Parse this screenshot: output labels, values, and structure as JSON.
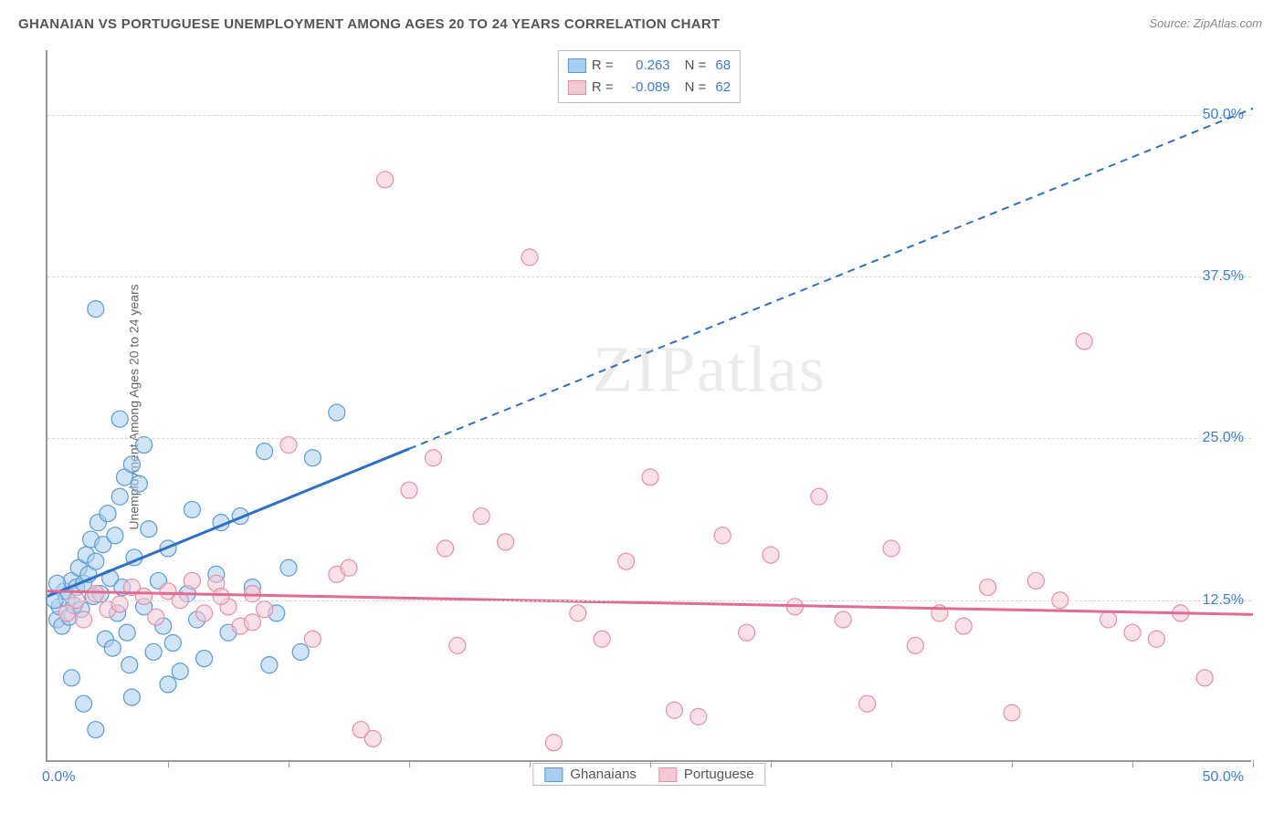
{
  "title": "GHANAIAN VS PORTUGUESE UNEMPLOYMENT AMONG AGES 20 TO 24 YEARS CORRELATION CHART",
  "source": "Source: ZipAtlas.com",
  "y_axis_title": "Unemployment Among Ages 20 to 24 years",
  "watermark": {
    "zip": "ZIP",
    "atlas": "atlas"
  },
  "chart": {
    "type": "scatter",
    "xlim": [
      0,
      50
    ],
    "ylim": [
      0,
      55
    ],
    "x_min_label": "0.0%",
    "x_max_label": "50.0%",
    "yticks": [
      12.5,
      25.0,
      37.5,
      50.0
    ],
    "ytick_labels": [
      "12.5%",
      "25.0%",
      "37.5%",
      "50.0%"
    ],
    "xticks": [
      5,
      10,
      15,
      20,
      25,
      30,
      35,
      40,
      45,
      50
    ],
    "background_color": "#ffffff",
    "grid_color": "#d8d8d8",
    "axis_color": "#999999",
    "marker_radius": 9,
    "marker_stroke_width": 1.2,
    "marker_opacity": 0.55,
    "colors": {
      "series1_fill": "#a9cdf0",
      "series1_stroke": "#5a9bd5",
      "series1_line": "#2e6fc9",
      "series2_fill": "#f6c8d4",
      "series2_stroke": "#e58fa6",
      "series2_line": "#e36b91",
      "tick_label": "#3b7dd8"
    },
    "stats": {
      "series1": {
        "R": "0.263",
        "N": "68"
      },
      "series2": {
        "R": "-0.089",
        "N": "62"
      }
    },
    "trend_lines": {
      "series1": {
        "x1": 0,
        "y1": 12.8,
        "solid_x2": 15,
        "solid_y2": 24.2,
        "dash_x2": 50,
        "dash_y2": 50.5
      },
      "series2": {
        "x1": 0,
        "y1": 13.2,
        "x2": 50,
        "y2": 11.4
      }
    },
    "series": [
      {
        "name": "Ghanaians",
        "points": [
          [
            0.4,
            11.0
          ],
          [
            0.5,
            12.0
          ],
          [
            0.6,
            10.5
          ],
          [
            0.7,
            13.2
          ],
          [
            0.8,
            12.6
          ],
          [
            0.9,
            11.2
          ],
          [
            1.0,
            14.0
          ],
          [
            1.1,
            12.1
          ],
          [
            1.2,
            13.5
          ],
          [
            1.3,
            15.0
          ],
          [
            1.4,
            11.8
          ],
          [
            1.5,
            13.8
          ],
          [
            1.6,
            16.0
          ],
          [
            1.7,
            14.5
          ],
          [
            1.8,
            17.2
          ],
          [
            1.9,
            12.8
          ],
          [
            2.0,
            15.5
          ],
          [
            2.1,
            18.5
          ],
          [
            2.2,
            13.0
          ],
          [
            2.3,
            16.8
          ],
          [
            2.4,
            9.5
          ],
          [
            2.5,
            19.2
          ],
          [
            2.6,
            14.2
          ],
          [
            2.7,
            8.8
          ],
          [
            2.8,
            17.5
          ],
          [
            2.9,
            11.5
          ],
          [
            3.0,
            20.5
          ],
          [
            3.1,
            13.5
          ],
          [
            3.2,
            22.0
          ],
          [
            3.3,
            10.0
          ],
          [
            3.4,
            7.5
          ],
          [
            3.5,
            23.0
          ],
          [
            3.6,
            15.8
          ],
          [
            3.8,
            21.5
          ],
          [
            4.0,
            12.0
          ],
          [
            4.2,
            18.0
          ],
          [
            4.4,
            8.5
          ],
          [
            4.6,
            14.0
          ],
          [
            4.8,
            10.5
          ],
          [
            5.0,
            16.5
          ],
          [
            5.2,
            9.2
          ],
          [
            5.5,
            7.0
          ],
          [
            5.8,
            13.0
          ],
          [
            6.0,
            19.5
          ],
          [
            6.2,
            11.0
          ],
          [
            6.5,
            8.0
          ],
          [
            7.0,
            14.5
          ],
          [
            7.2,
            18.5
          ],
          [
            7.5,
            10.0
          ],
          [
            8.0,
            19.0
          ],
          [
            8.5,
            13.5
          ],
          [
            9.0,
            24.0
          ],
          [
            9.2,
            7.5
          ],
          [
            9.5,
            11.5
          ],
          [
            10.0,
            15.0
          ],
          [
            10.5,
            8.5
          ],
          [
            11.0,
            23.5
          ],
          [
            12.0,
            27.0
          ],
          [
            2.0,
            35.0
          ],
          [
            3.0,
            26.5
          ],
          [
            4.0,
            24.5
          ],
          [
            1.5,
            4.5
          ],
          [
            2.0,
            2.5
          ],
          [
            1.0,
            6.5
          ],
          [
            3.5,
            5.0
          ],
          [
            5.0,
            6.0
          ],
          [
            0.3,
            12.5
          ],
          [
            0.4,
            13.8
          ]
        ]
      },
      {
        "name": "Portuguese",
        "points": [
          [
            0.8,
            11.5
          ],
          [
            1.2,
            12.5
          ],
          [
            1.5,
            11.0
          ],
          [
            2.0,
            13.0
          ],
          [
            2.5,
            11.8
          ],
          [
            3.0,
            12.2
          ],
          [
            3.5,
            13.5
          ],
          [
            4.0,
            12.8
          ],
          [
            4.5,
            11.2
          ],
          [
            5.0,
            13.2
          ],
          [
            5.5,
            12.5
          ],
          [
            6.0,
            14.0
          ],
          [
            6.5,
            11.5
          ],
          [
            7.0,
            13.8
          ],
          [
            7.5,
            12.0
          ],
          [
            8.0,
            10.5
          ],
          [
            8.5,
            13.0
          ],
          [
            9.0,
            11.8
          ],
          [
            10.0,
            24.5
          ],
          [
            11.0,
            9.5
          ],
          [
            12.0,
            14.5
          ],
          [
            13.0,
            2.5
          ],
          [
            14.0,
            45.0
          ],
          [
            15.0,
            21.0
          ],
          [
            16.0,
            23.5
          ],
          [
            16.5,
            16.5
          ],
          [
            17.0,
            9.0
          ],
          [
            18.0,
            19.0
          ],
          [
            19.0,
            17.0
          ],
          [
            20.0,
            39.0
          ],
          [
            21.0,
            1.5
          ],
          [
            22.0,
            11.5
          ],
          [
            23.0,
            9.5
          ],
          [
            24.0,
            15.5
          ],
          [
            25.0,
            22.0
          ],
          [
            26.0,
            4.0
          ],
          [
            27.0,
            3.5
          ],
          [
            28.0,
            17.5
          ],
          [
            29.0,
            10.0
          ],
          [
            30.0,
            16.0
          ],
          [
            31.0,
            12.0
          ],
          [
            32.0,
            20.5
          ],
          [
            33.0,
            11.0
          ],
          [
            34.0,
            4.5
          ],
          [
            35.0,
            16.5
          ],
          [
            36.0,
            9.0
          ],
          [
            37.0,
            11.5
          ],
          [
            38.0,
            10.5
          ],
          [
            39.0,
            13.5
          ],
          [
            40.0,
            3.8
          ],
          [
            41.0,
            14.0
          ],
          [
            42.0,
            12.5
          ],
          [
            43.0,
            32.5
          ],
          [
            44.0,
            11.0
          ],
          [
            45.0,
            10.0
          ],
          [
            46.0,
            9.5
          ],
          [
            47.0,
            11.5
          ],
          [
            48.0,
            6.5
          ],
          [
            12.5,
            15.0
          ],
          [
            13.5,
            1.8
          ],
          [
            8.5,
            10.8
          ],
          [
            7.2,
            12.8
          ]
        ]
      }
    ]
  },
  "legend": {
    "series1": "Ghanaians",
    "series2": "Portuguese"
  }
}
